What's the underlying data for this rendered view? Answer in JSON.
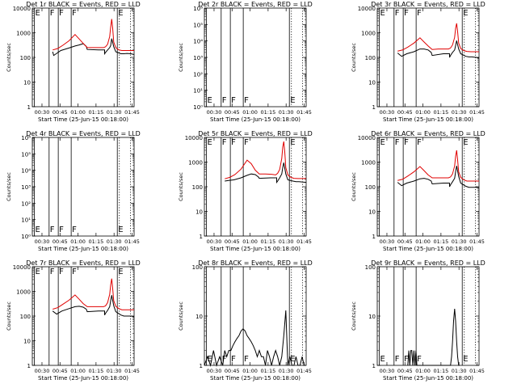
{
  "figure": {
    "time_axis_label": "Start Time (25-Jun-15 00:18:00)",
    "y_axis_label": "Counts/sec",
    "time_ticks": [
      "00:30",
      "00:45",
      "01:00",
      "01:15",
      "01:30",
      "01:45"
    ],
    "colors": {
      "events": "#000000",
      "lld": "#e00000"
    }
  },
  "chart_data": [
    {
      "type": "line",
      "title": "Det 1r BLACK = Events, RED = LLD",
      "ylog": true,
      "ylim": [
        1,
        10000
      ],
      "ytick_labels": [
        "1",
        "10",
        "100",
        "1000",
        "10000"
      ],
      "flag_labels": [
        "E",
        "F",
        "F",
        "F",
        "E"
      ],
      "show_curves": true,
      "series": [
        {
          "name": "Events",
          "color": "#000000",
          "x": [
            0.2,
            0.21,
            0.28,
            0.36,
            0.42,
            0.46,
            0.5,
            0.53,
            0.54,
            0.65,
            0.71,
            0.71,
            0.72,
            0.74,
            0.76,
            0.77,
            0.78,
            0.8,
            0.82,
            0.87,
            0.9,
            0.93,
            0.97,
            1.0
          ],
          "y": [
            170,
            120,
            190,
            240,
            290,
            320,
            360,
            280,
            210,
            200,
            200,
            140,
            160,
            200,
            250,
            300,
            580,
            270,
            170,
            140,
            140,
            145,
            140,
            130
          ]
        },
        {
          "name": "LLD",
          "color": "#e00000",
          "x": [
            0.2,
            0.25,
            0.3,
            0.36,
            0.42,
            0.46,
            0.5,
            0.54,
            0.6,
            0.66,
            0.7,
            0.72,
            0.74,
            0.76,
            0.77,
            0.78,
            0.79,
            0.8,
            0.82,
            0.85,
            0.88,
            0.92,
            0.96,
            1.0
          ],
          "y": [
            200,
            230,
            310,
            470,
            850,
            560,
            370,
            250,
            250,
            250,
            250,
            270,
            340,
            700,
            1700,
            3600,
            1500,
            420,
            250,
            200,
            190,
            190,
            190,
            190
          ]
        }
      ]
    },
    {
      "type": "line",
      "title": "Det 2r BLACK = Events, RED = LLD",
      "ylog": true,
      "ylim": [
        1,
        1000000
      ],
      "ytick_labels": [
        "10⁰",
        "10¹",
        "10²",
        "10³",
        "10⁴",
        "10⁵",
        "10⁶"
      ],
      "flag_labels": [
        "E",
        "F",
        "F",
        "F",
        "E"
      ],
      "show_curves": false,
      "series": []
    },
    {
      "type": "line",
      "title": "Det 3r BLACK = Events, RED = LLD",
      "ylog": true,
      "ylim": [
        1,
        10000
      ],
      "ytick_labels": [
        "1",
        "10",
        "100",
        "1000",
        "10000"
      ],
      "flag_labels": [
        "E",
        "F",
        "F",
        "F",
        "E"
      ],
      "show_curves": true,
      "series": [
        {
          "name": "Events",
          "color": "#000000",
          "x": [
            0.2,
            0.24,
            0.29,
            0.36,
            0.42,
            0.46,
            0.5,
            0.53,
            0.54,
            0.65,
            0.71,
            0.71,
            0.72,
            0.74,
            0.76,
            0.77,
            0.78,
            0.8,
            0.82,
            0.87,
            0.9,
            0.93,
            0.97,
            1.0
          ],
          "y": [
            150,
            110,
            140,
            170,
            220,
            220,
            200,
            160,
            120,
            140,
            140,
            100,
            120,
            160,
            200,
            300,
            480,
            220,
            140,
            110,
            105,
            105,
            100,
            95
          ]
        },
        {
          "name": "LLD",
          "color": "#e00000",
          "x": [
            0.2,
            0.25,
            0.3,
            0.36,
            0.42,
            0.46,
            0.5,
            0.54,
            0.6,
            0.66,
            0.7,
            0.72,
            0.74,
            0.76,
            0.77,
            0.78,
            0.79,
            0.8,
            0.82,
            0.85,
            0.88,
            0.92,
            0.96,
            1.0
          ],
          "y": [
            180,
            200,
            260,
            380,
            620,
            420,
            290,
            210,
            220,
            220,
            220,
            240,
            320,
            650,
            1500,
            2400,
            1100,
            380,
            230,
            190,
            175,
            170,
            170,
            170
          ]
        }
      ]
    },
    {
      "type": "line",
      "title": "Det 4r BLACK = Events, RED = LLD",
      "ylog": true,
      "ylim": [
        1,
        1000000
      ],
      "ytick_labels": [
        "10⁰",
        "10¹",
        "10²",
        "10³",
        "10⁴",
        "10⁵",
        "10⁶"
      ],
      "flag_labels": [
        "E",
        "F",
        "F",
        "F",
        "E"
      ],
      "show_curves": false,
      "series": []
    },
    {
      "type": "line",
      "title": "Det 5r BLACK = Events, RED = LLD",
      "ylog": true,
      "ylim": [
        1,
        10000
      ],
      "ytick_labels": [
        "1",
        "10",
        "100",
        "1000",
        "10000"
      ],
      "flag_labels": [
        "E",
        "F",
        "F",
        "F",
        "E"
      ],
      "show_curves": true,
      "series": [
        {
          "name": "Events",
          "color": "#000000",
          "x": [
            0.2,
            0.24,
            0.29,
            0.36,
            0.42,
            0.46,
            0.5,
            0.53,
            0.54,
            0.65,
            0.71,
            0.71,
            0.72,
            0.74,
            0.76,
            0.77,
            0.78,
            0.8,
            0.82,
            0.87,
            0.9,
            0.93,
            0.97,
            1.0
          ],
          "y": [
            170,
            180,
            190,
            230,
            290,
            330,
            310,
            250,
            220,
            230,
            230,
            150,
            170,
            230,
            330,
            600,
            950,
            330,
            190,
            170,
            160,
            160,
            155,
            150
          ]
        },
        {
          "name": "LLD",
          "color": "#e00000",
          "x": [
            0.2,
            0.25,
            0.3,
            0.36,
            0.42,
            0.46,
            0.5,
            0.54,
            0.6,
            0.66,
            0.7,
            0.72,
            0.74,
            0.76,
            0.77,
            0.78,
            0.79,
            0.8,
            0.82,
            0.85,
            0.88,
            0.92,
            0.96,
            1.0
          ],
          "y": [
            210,
            240,
            310,
            520,
            1200,
            860,
            470,
            330,
            330,
            320,
            300,
            350,
            500,
            1400,
            4000,
            6800,
            2600,
            600,
            300,
            240,
            220,
            215,
            215,
            215
          ]
        }
      ]
    },
    {
      "type": "line",
      "title": "Det 6r BLACK = Events, RED = LLD",
      "ylog": true,
      "ylim": [
        1,
        10000
      ],
      "ytick_labels": [
        "1",
        "10",
        "100",
        "1000",
        "10000"
      ],
      "flag_labels": [
        "E",
        "F",
        "F",
        "F",
        "E"
      ],
      "show_curves": true,
      "series": [
        {
          "name": "Events",
          "color": "#000000",
          "x": [
            0.2,
            0.24,
            0.29,
            0.36,
            0.42,
            0.46,
            0.5,
            0.53,
            0.54,
            0.65,
            0.71,
            0.71,
            0.72,
            0.74,
            0.76,
            0.77,
            0.78,
            0.8,
            0.82,
            0.87,
            0.9,
            0.93,
            0.97,
            1.0
          ],
          "y": [
            150,
            110,
            140,
            170,
            210,
            220,
            200,
            170,
            130,
            140,
            140,
            100,
            120,
            160,
            220,
            400,
            700,
            260,
            140,
            105,
            95,
            95,
            95,
            90
          ]
        },
        {
          "name": "LLD",
          "color": "#e00000",
          "x": [
            0.2,
            0.25,
            0.3,
            0.36,
            0.42,
            0.46,
            0.5,
            0.54,
            0.6,
            0.66,
            0.7,
            0.72,
            0.74,
            0.76,
            0.77,
            0.78,
            0.79,
            0.8,
            0.82,
            0.85,
            0.88,
            0.92,
            0.96,
            1.0
          ],
          "y": [
            180,
            200,
            270,
            400,
            660,
            450,
            300,
            230,
            230,
            230,
            230,
            250,
            330,
            700,
            1700,
            3000,
            1200,
            400,
            240,
            190,
            170,
            170,
            170,
            170
          ]
        }
      ]
    },
    {
      "type": "line",
      "title": "Det 7r BLACK = Events, RED = LLD",
      "ylog": true,
      "ylim": [
        1,
        10000
      ],
      "ytick_labels": [
        "1",
        "10",
        "100",
        "1000",
        "10000"
      ],
      "flag_labels": [
        "E",
        "F",
        "F",
        "F",
        "E"
      ],
      "show_curves": true,
      "series": [
        {
          "name": "Events",
          "color": "#000000",
          "x": [
            0.2,
            0.24,
            0.29,
            0.36,
            0.42,
            0.46,
            0.5,
            0.53,
            0.54,
            0.65,
            0.71,
            0.71,
            0.72,
            0.74,
            0.76,
            0.77,
            0.78,
            0.8,
            0.82,
            0.87,
            0.9,
            0.93,
            0.97,
            1.0
          ],
          "y": [
            160,
            120,
            160,
            200,
            240,
            250,
            230,
            190,
            150,
            160,
            160,
            110,
            130,
            170,
            240,
            420,
            700,
            260,
            150,
            110,
            100,
            100,
            100,
            95
          ]
        },
        {
          "name": "LLD",
          "color": "#e00000",
          "x": [
            0.2,
            0.25,
            0.3,
            0.36,
            0.42,
            0.46,
            0.5,
            0.54,
            0.6,
            0.66,
            0.7,
            0.72,
            0.74,
            0.76,
            0.77,
            0.78,
            0.79,
            0.8,
            0.82,
            0.85,
            0.88,
            0.92,
            0.96,
            1.0
          ],
          "y": [
            190,
            220,
            300,
            440,
            720,
            480,
            320,
            240,
            240,
            240,
            240,
            260,
            350,
            760,
            1800,
            3300,
            1300,
            420,
            250,
            200,
            180,
            180,
            180,
            180
          ]
        }
      ]
    },
    {
      "type": "line",
      "title": "Det 8r BLACK = Events, RED = LLD",
      "ylog": true,
      "ylim": [
        1,
        100
      ],
      "ytick_labels": [
        "1",
        "10",
        "100"
      ],
      "flag_labels": [
        "E",
        "F",
        "F",
        "F",
        "E"
      ],
      "show_curves": true,
      "series": [
        {
          "name": "Events",
          "color": "#000000",
          "x": [
            0.0,
            0.03,
            0.06,
            0.09,
            0.12,
            0.15,
            0.18,
            0.2,
            0.22,
            0.24,
            0.26,
            0.28,
            0.3,
            0.32,
            0.34,
            0.36,
            0.38,
            0.4,
            0.42,
            0.44,
            0.46,
            0.48,
            0.5,
            0.52,
            0.54,
            0.56,
            0.58,
            0.6,
            0.62,
            0.64,
            0.66,
            0.68,
            0.7,
            0.72,
            0.74,
            0.76,
            0.78,
            0.8,
            0.82,
            0.84,
            0.86,
            0.88,
            0.9,
            0.92,
            0.94,
            0.96,
            0.98,
            1.0
          ],
          "y": [
            1,
            1.5,
            1,
            2,
            1,
            1.5,
            1,
            2,
            1.5,
            2,
            2,
            2.5,
            3,
            3.5,
            4,
            5,
            5.5,
            5,
            4,
            3.5,
            3,
            2.5,
            2,
            1.5,
            2,
            1.5,
            1.5,
            1,
            2,
            1.5,
            1,
            1.5,
            2,
            1.5,
            1,
            1.5,
            4,
            13,
            1,
            1.5,
            1,
            1,
            1.5,
            1,
            1,
            1.5,
            1,
            1
          ]
        }
      ]
    },
    {
      "type": "line",
      "title": "Det 9r BLACK = Events, RED = LLD",
      "ylog": true,
      "ylim": [
        1,
        100
      ],
      "ytick_labels": [
        "1",
        "10",
        "100"
      ],
      "flag_labels": [
        "E",
        "F",
        "F",
        "F",
        "E"
      ],
      "show_curves": true,
      "series": [
        {
          "name": "Events",
          "color": "#000000",
          "x": [
            0.3,
            0.31,
            0.32,
            0.33,
            0.34,
            0.35,
            0.36,
            0.37,
            0.38,
            0.39,
            0.4,
            0.72,
            0.73,
            0.74,
            0.75,
            0.76,
            0.77,
            0.78,
            0.79,
            0.8,
            0.81
          ],
          "y": [
            1,
            2,
            1,
            2,
            2,
            1,
            2,
            1,
            2,
            1,
            1,
            1,
            1.5,
            3,
            8,
            14,
            8,
            3,
            1.5,
            1,
            1
          ]
        }
      ]
    }
  ]
}
